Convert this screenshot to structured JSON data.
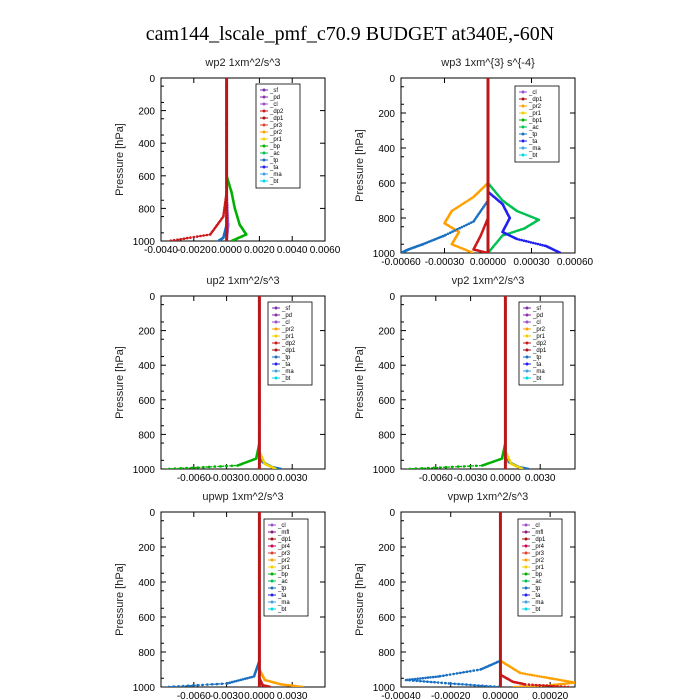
{
  "figure": {
    "title": "cam144_lscale_pmf_c70.9  BUDGET at340E,-60N"
  },
  "colors": {
    "sf": "#7a2ea8",
    "pd": "#8b2fb0",
    "cl": "#9b4fd0",
    "dp2": "#cc1a1a",
    "dp1": "#aa1111",
    "pr3": "#e04030",
    "pr2": "#ffa000",
    "pr1": "#f0d000",
    "bp": "#00b000",
    "bp1": "#00b000",
    "ac": "#00c050",
    "tp": "#1a70c0",
    "ta": "#2020ee",
    "ma": "#40a0e0",
    "bt": "#00d8e8",
    "mfl": "#8b1a7a",
    "pr4": "#cc0055"
  },
  "chart_data": [
    {
      "type": "line",
      "title": "wp2   1xm^2/s^3",
      "ylabel": "Pressure  [hPa]",
      "ylim": [
        1000,
        0
      ],
      "xlim": [
        -0.004,
        0.006
      ],
      "xticks": [
        -0.004,
        -0.002,
        0.0,
        0.002,
        0.004,
        0.006
      ],
      "xtick_labels": [
        "-0.0040",
        "-0.0020",
        "0.0000",
        "0.0020",
        "0.0040",
        "0.0060"
      ],
      "yticks": [
        0,
        200,
        400,
        600,
        800,
        1000
      ],
      "legend": [
        "_sf",
        "_pd",
        "_cl",
        "_dp2",
        "_dp1",
        "_pr3",
        "_pr2",
        "_pr1",
        "_bp",
        "_ac",
        "_tp",
        "_ta",
        "_ma",
        "_bt"
      ],
      "series": [
        {
          "name": "_cl",
          "color": "#9b4fd0",
          "points": [
            [
              0.0,
              0
            ],
            [
              0.0,
              700
            ],
            [
              0.0001,
              900
            ],
            [
              0.0,
              1000
            ]
          ]
        },
        {
          "name": "_dp1",
          "color": "#cc1a1a",
          "points": [
            [
              0.0,
              0
            ],
            [
              0.0,
              700
            ],
            [
              -0.0002,
              850
            ],
            [
              -0.001,
              960
            ],
            [
              -0.0035,
              1000
            ]
          ]
        },
        {
          "name": "_bp",
          "color": "#00b000",
          "points": [
            [
              0.0,
              0
            ],
            [
              0.0,
              600
            ],
            [
              0.0003,
              700
            ],
            [
              0.0005,
              800
            ],
            [
              0.0008,
              900
            ],
            [
              0.0012,
              960
            ],
            [
              0.0003,
              1000
            ]
          ]
        },
        {
          "name": "_tp",
          "color": "#1a70c0",
          "points": [
            [
              0.0,
              0
            ],
            [
              0.0,
              900
            ],
            [
              -0.0002,
              980
            ],
            [
              -0.0005,
              1000
            ]
          ]
        },
        {
          "name": "_pd",
          "color": "#8b2fb0",
          "points": [
            [
              0.0,
              0
            ],
            [
              0.0,
              1000
            ]
          ]
        }
      ]
    },
    {
      "type": "line",
      "title": "wp3   1xm^{3} s^{-4}",
      "ylabel": "Pressure  [hPa]",
      "ylim": [
        1000,
        0
      ],
      "xlim": [
        -0.0006,
        0.0006
      ],
      "xticks": [
        -0.0006,
        -0.0003,
        0.0,
        0.0003,
        0.0006
      ],
      "xtick_labels": [
        "-0.00060",
        "-0.00030",
        "0.00000",
        "0.00030",
        "0.00060"
      ],
      "yticks": [
        0,
        200,
        400,
        600,
        800,
        1000
      ],
      "legend": [
        "_cl",
        "_dp1",
        "_pr2",
        "_pr1",
        "_bp1",
        "_ac",
        "_tp",
        "_ta",
        "_ma",
        "_bt"
      ],
      "series": [
        {
          "name": "_pr2",
          "color": "#ffa000",
          "points": [
            [
              0.0,
              0
            ],
            [
              0.0,
              600
            ],
            [
              -0.0001,
              680
            ],
            [
              -0.00025,
              760
            ],
            [
              -0.0003,
              830
            ],
            [
              -0.0002,
              880
            ],
            [
              -0.00025,
              950
            ],
            [
              -0.0001,
              1000
            ]
          ]
        },
        {
          "name": "_ac",
          "color": "#00c050",
          "points": [
            [
              0.0,
              0
            ],
            [
              0.0,
              600
            ],
            [
              0.0001,
              700
            ],
            [
              0.0002,
              760
            ],
            [
              0.00035,
              810
            ],
            [
              0.00025,
              860
            ],
            [
              0.0001,
              900
            ],
            [
              0.0,
              1000
            ]
          ]
        },
        {
          "name": "_ta",
          "color": "#2020ee",
          "points": [
            [
              0.0,
              0
            ],
            [
              0.0,
              650
            ],
            [
              0.0001,
              720
            ],
            [
              0.00015,
              800
            ],
            [
              0.0001,
              880
            ],
            [
              0.0002,
              920
            ],
            [
              0.0004,
              960
            ],
            [
              0.0005,
              1000
            ]
          ]
        },
        {
          "name": "_tp",
          "color": "#1a70c0",
          "points": [
            [
              0.0,
              0
            ],
            [
              0.0,
              700
            ],
            [
              -0.0001,
              820
            ],
            [
              -0.0003,
              900
            ],
            [
              -0.00045,
              950
            ],
            [
              -0.00055,
              980
            ],
            [
              -0.0006,
              1000
            ]
          ]
        },
        {
          "name": "_dp1",
          "color": "#cc1a1a",
          "points": [
            [
              0.0,
              0
            ],
            [
              0.0,
              800
            ],
            [
              -5e-05,
              900
            ],
            [
              -0.0001,
              980
            ],
            [
              0.0,
              1000
            ]
          ]
        }
      ]
    },
    {
      "type": "line",
      "title": "up2   1xm^2/s^3",
      "ylabel": "Pressure  [hPa]",
      "ylim": [
        1000,
        0
      ],
      "xlim": [
        -0.009,
        0.006
      ],
      "xticks": [
        -0.006,
        -0.003,
        0.0,
        0.003
      ],
      "xtick_labels": [
        "-0.0060",
        "-0.0030",
        "0.0000",
        "0.0030"
      ],
      "yticks": [
        0,
        200,
        400,
        600,
        800,
        1000
      ],
      "legend": [
        "_sf",
        "_pd",
        "_cl",
        "_pr2",
        "_pr1",
        "_dp2",
        "_dp1",
        "_tp",
        "_ta",
        "_ma",
        "_bt"
      ],
      "series": [
        {
          "name": "_dp1",
          "color": "#00b000",
          "points": [
            [
              0.0,
              0
            ],
            [
              0.0,
              850
            ],
            [
              -0.0003,
              940
            ],
            [
              -0.002,
              980
            ],
            [
              -0.0085,
              1000
            ]
          ]
        },
        {
          "name": "_tp",
          "color": "#1a70c0",
          "points": [
            [
              0.0,
              0
            ],
            [
              0.0,
              900
            ],
            [
              0.0003,
              960
            ],
            [
              0.0012,
              990
            ],
            [
              0.002,
              1000
            ]
          ]
        },
        {
          "name": "_pr1",
          "color": "#f0d000",
          "points": [
            [
              0.0,
              0
            ],
            [
              0.0,
              900
            ],
            [
              0.0005,
              970
            ],
            [
              0.0015,
              1000
            ]
          ]
        },
        {
          "name": "_cl",
          "color": "#cc1a1a",
          "points": [
            [
              0.0,
              0
            ],
            [
              0.0,
              1000
            ]
          ]
        }
      ]
    },
    {
      "type": "line",
      "title": "vp2   1xm^2/s^3",
      "ylabel": "Pressure  [hPa]",
      "ylim": [
        1000,
        0
      ],
      "xlim": [
        -0.009,
        0.006
      ],
      "xticks": [
        -0.006,
        -0.003,
        0.0,
        0.003
      ],
      "xtick_labels": [
        "-0.0060",
        "-0.0030",
        "0.0000",
        "0.0030"
      ],
      "yticks": [
        0,
        200,
        400,
        600,
        800,
        1000
      ],
      "legend": [
        "_sf",
        "_pd",
        "_cl",
        "_pr2",
        "_pr1",
        "_dp2",
        "_dp1",
        "_tp",
        "_ta",
        "_ma",
        "_bt"
      ],
      "series": [
        {
          "name": "_dp1",
          "color": "#00b000",
          "points": [
            [
              0.0,
              0
            ],
            [
              0.0,
              850
            ],
            [
              -0.0003,
              940
            ],
            [
              -0.002,
              980
            ],
            [
              -0.0085,
              1000
            ]
          ]
        },
        {
          "name": "_tp",
          "color": "#1a70c0",
          "points": [
            [
              0.0,
              0
            ],
            [
              0.0,
              900
            ],
            [
              0.0003,
              960
            ],
            [
              0.0012,
              990
            ],
            [
              0.002,
              1000
            ]
          ]
        },
        {
          "name": "_pr1",
          "color": "#f0d000",
          "points": [
            [
              0.0,
              0
            ],
            [
              0.0,
              900
            ],
            [
              0.0005,
              970
            ],
            [
              0.0015,
              1000
            ]
          ]
        },
        {
          "name": "_cl",
          "color": "#cc1a1a",
          "points": [
            [
              0.0,
              0
            ],
            [
              0.0,
              1000
            ]
          ]
        }
      ]
    },
    {
      "type": "line",
      "title": "upwp   1xm^2/s^3",
      "ylabel": "Pressure  [hPa]",
      "ylim": [
        1000,
        0
      ],
      "xlim": [
        -0.009,
        0.006
      ],
      "xticks": [
        -0.006,
        -0.003,
        0.0,
        0.003
      ],
      "xtick_labels": [
        "-0.0060",
        "-0.0030",
        "0.0000",
        "0.0030"
      ],
      "yticks": [
        0,
        200,
        400,
        600,
        800,
        1000
      ],
      "legend": [
        "_cl",
        "_mfl",
        "_dp1",
        "_pr4",
        "_pr3",
        "_pr2",
        "_pr1",
        "_bp",
        "_ac",
        "_tp",
        "_ta",
        "_ma",
        "_bt"
      ],
      "series": [
        {
          "name": "_tp",
          "color": "#1a70c0",
          "points": [
            [
              0.0,
              0
            ],
            [
              0.0,
              850
            ],
            [
              -0.0005,
              940
            ],
            [
              -0.003,
              980
            ],
            [
              -0.0085,
              1000
            ]
          ]
        },
        {
          "name": "_pr2",
          "color": "#ffa000",
          "points": [
            [
              0.0,
              0
            ],
            [
              0.0,
              900
            ],
            [
              0.0005,
              960
            ],
            [
              0.002,
              985
            ],
            [
              0.004,
              1000
            ]
          ]
        },
        {
          "name": "_dp1",
          "color": "#cc1a1a",
          "points": [
            [
              0.0,
              0
            ],
            [
              0.0,
              950
            ],
            [
              0.0003,
              990
            ],
            [
              0.001,
              1000
            ]
          ]
        },
        {
          "name": "_cl",
          "color": "#9b4fd0",
          "points": [
            [
              0.0,
              0
            ],
            [
              0.0,
              1000
            ]
          ]
        }
      ]
    },
    {
      "type": "line",
      "title": "vpwp   1xm^2/s^3",
      "ylabel": "Pressure  [hPa]",
      "ylim": [
        1000,
        0
      ],
      "xlim": [
        -0.0004,
        0.0003
      ],
      "xticks": [
        -0.0004,
        -0.0002,
        0.0,
        0.0002
      ],
      "xtick_labels": [
        "-0.00040",
        "-0.00020",
        "0.00000",
        "0.00020"
      ],
      "yticks": [
        0,
        200,
        400,
        600,
        800,
        1000
      ],
      "legend": [
        "_cl",
        "_mfl",
        "_dp1",
        "_pr4",
        "_pr3",
        "_pr2",
        "_pr1",
        "_bp",
        "_ac",
        "_tp",
        "_ta",
        "_ma",
        "_bt"
      ],
      "series": [
        {
          "name": "_tp",
          "color": "#1a70c0",
          "points": [
            [
              0.0,
              0
            ],
            [
              0.0,
              850
            ],
            [
              -8e-05,
              900
            ],
            [
              -0.00025,
              940
            ],
            [
              -0.00038,
              960
            ],
            [
              -0.0002,
              980
            ],
            [
              0.0,
              1000
            ]
          ]
        },
        {
          "name": "_pr2",
          "color": "#ffa000",
          "points": [
            [
              0.0,
              0
            ],
            [
              0.0,
              850
            ],
            [
              8e-05,
              920
            ],
            [
              0.0002,
              950
            ],
            [
              0.0003,
              975
            ],
            [
              0.0002,
              990
            ],
            [
              5e-05,
              1000
            ]
          ]
        },
        {
          "name": "_dp1",
          "color": "#cc1a1a",
          "points": [
            [
              0.0,
              0
            ],
            [
              0.0,
              930
            ],
            [
              5e-05,
              970
            ],
            [
              0.0001,
              985
            ],
            [
              0.00028,
              1000
            ]
          ]
        },
        {
          "name": "_cl",
          "color": "#9b4fd0",
          "points": [
            [
              0.0,
              0
            ],
            [
              0.0,
              1000
            ]
          ]
        }
      ]
    }
  ]
}
